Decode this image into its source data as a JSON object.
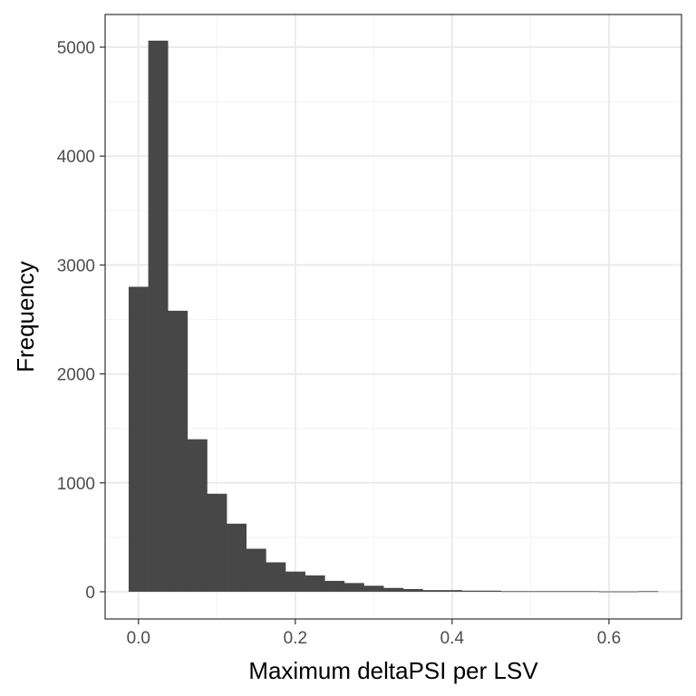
{
  "chart_data": {
    "type": "bar",
    "title": "",
    "xlabel": "Maximum deltaPSI per LSV",
    "ylabel": "Frequency",
    "xlim": [
      -0.0425,
      0.6925
    ],
    "ylim": [
      -250,
      5300
    ],
    "x_ticks": [
      0.0,
      0.2,
      0.4,
      0.6
    ],
    "x_tick_labels": [
      "0.0",
      "0.2",
      "0.4",
      "0.6"
    ],
    "y_ticks": [
      0,
      1000,
      2000,
      3000,
      4000,
      5000
    ],
    "y_tick_labels": [
      "0",
      "1000",
      "2000",
      "3000",
      "4000",
      "5000"
    ],
    "grid": true,
    "bin_width": 0.025,
    "bins_start": [
      -0.0125,
      0.0125,
      0.0375,
      0.0625,
      0.0875,
      0.1125,
      0.1375,
      0.1625,
      0.1875,
      0.2125,
      0.2375,
      0.2625,
      0.2875,
      0.3125,
      0.3375,
      0.3625,
      0.3875,
      0.4125,
      0.4375,
      0.4625,
      0.4875,
      0.5125,
      0.5375,
      0.5625,
      0.5875,
      0.6125,
      0.6375
    ],
    "values": [
      2800,
      5060,
      2580,
      1400,
      900,
      625,
      395,
      270,
      185,
      150,
      100,
      80,
      55,
      35,
      25,
      15,
      15,
      10,
      10,
      5,
      5,
      5,
      5,
      5,
      3,
      3,
      5
    ],
    "colors": {
      "bar": "#474747",
      "panel_border": "#333333",
      "grid_major": "#ebebeb",
      "grid_minor": "#f3f3f3"
    }
  }
}
